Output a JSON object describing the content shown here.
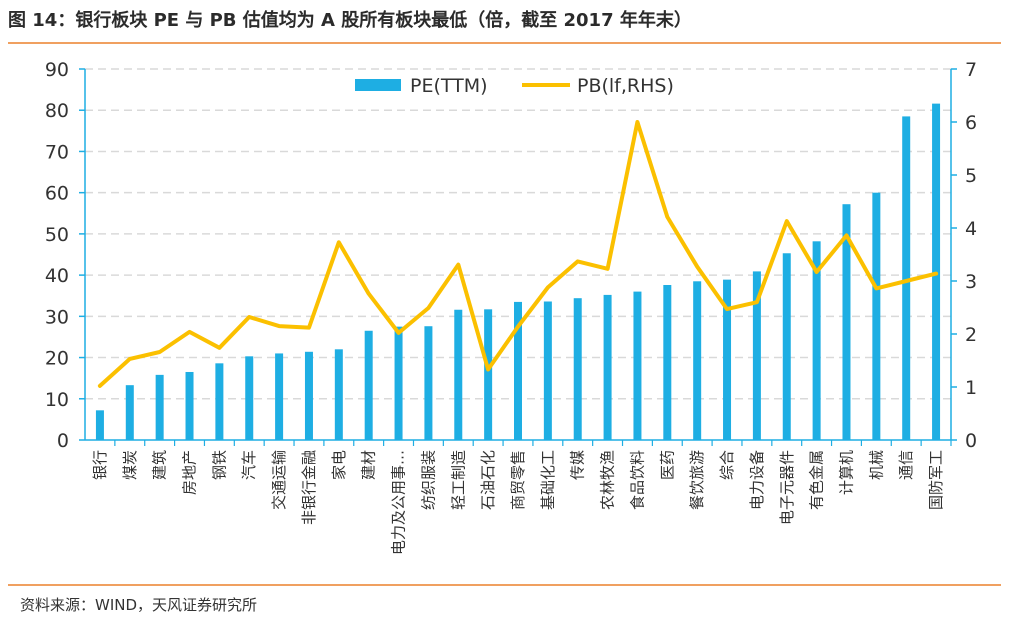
{
  "header": {
    "title": "图 14：银行板块 PE 与 PB 估值均为 A 股所有板块最低（倍，截至 2017 年年末）"
  },
  "footer": {
    "source": "资料来源：WIND，天风证券研究所"
  },
  "colors": {
    "bar": "#1eaee3",
    "line": "#fbc000",
    "grid": "#d9d9d9",
    "axis": "#1eaee3",
    "rule": "#f0a060"
  },
  "chart_data": {
    "type": "bar",
    "categories": [
      "银行",
      "煤炭",
      "建筑",
      "房地产",
      "钢铁",
      "汽车",
      "交通运输",
      "非银行金融",
      "家电",
      "建材",
      "电力及公用事…",
      "纺织服装",
      "轻工制造",
      "石油石化",
      "商贸零售",
      "基础化工",
      "传媒",
      "农林牧渔",
      "食品饮料",
      "医药",
      "餐饮旅游",
      "综合",
      "电力设备",
      "电子元器件",
      "有色金属",
      "计算机",
      "机械",
      "通信",
      "国防军工"
    ],
    "series": [
      {
        "name": "PE(TTM)",
        "type": "bar",
        "axis": "left",
        "values": [
          7.2,
          13.3,
          15.8,
          16.5,
          18.6,
          20.3,
          21.0,
          21.4,
          22.0,
          26.5,
          27.5,
          27.6,
          31.6,
          31.7,
          33.5,
          33.6,
          34.4,
          35.2,
          36.0,
          37.6,
          38.5,
          38.9,
          40.9,
          45.3,
          48.2,
          57.2,
          60.0,
          78.5,
          81.6
        ]
      },
      {
        "name": "PB(lf,RHS)",
        "type": "line",
        "axis": "right",
        "values": [
          1.02,
          1.53,
          1.66,
          2.04,
          1.74,
          2.32,
          2.15,
          2.12,
          3.73,
          2.76,
          2.02,
          2.49,
          3.31,
          1.33,
          2.14,
          2.88,
          3.37,
          3.23,
          6.0,
          4.21,
          3.27,
          2.47,
          2.6,
          4.13,
          3.17,
          3.86,
          2.86,
          3.0,
          3.14
        ]
      }
    ],
    "y_left": {
      "min": 0,
      "max": 90,
      "ticks": [
        0,
        10,
        20,
        30,
        40,
        50,
        60,
        70,
        80,
        90
      ]
    },
    "y_right": {
      "min": 0,
      "max": 7,
      "ticks": [
        0,
        1,
        2,
        3,
        4,
        5,
        6,
        7
      ]
    },
    "grid": true,
    "legend": "top-center"
  }
}
